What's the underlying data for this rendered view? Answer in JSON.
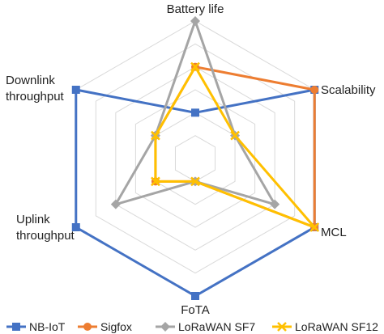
{
  "chart_data": {
    "type": "radar",
    "axes": [
      "Battery life",
      "Scalability",
      "MCL",
      "FoTA",
      "Uplink throughput",
      "Downlink throughput"
    ],
    "axis_label_lines": [
      [
        "Battery life"
      ],
      [
        "Scalability"
      ],
      [
        "MCL"
      ],
      [
        "FoTA"
      ],
      [
        "Uplink",
        "throughput"
      ],
      [
        "Downlink",
        "throughput"
      ]
    ],
    "rmax": 6,
    "grid_levels": 6,
    "series": [
      {
        "name": "NB-IoT",
        "color": "#4472C4",
        "marker": "square",
        "values": [
          2,
          6,
          6,
          6,
          6,
          6
        ]
      },
      {
        "name": "Sigfox",
        "color": "#ED7D31",
        "marker": "circle",
        "values": [
          4,
          6,
          6,
          1,
          2,
          2
        ]
      },
      {
        "name": "LoRaWAN SF7",
        "color": "#A5A5A5",
        "marker": "diamond",
        "values": [
          6,
          2,
          4,
          1,
          4,
          2
        ]
      },
      {
        "name": "LoRaWAN SF12",
        "color": "#FFC000",
        "marker": "x",
        "values": [
          4,
          2,
          6,
          1,
          2,
          2
        ]
      }
    ]
  }
}
